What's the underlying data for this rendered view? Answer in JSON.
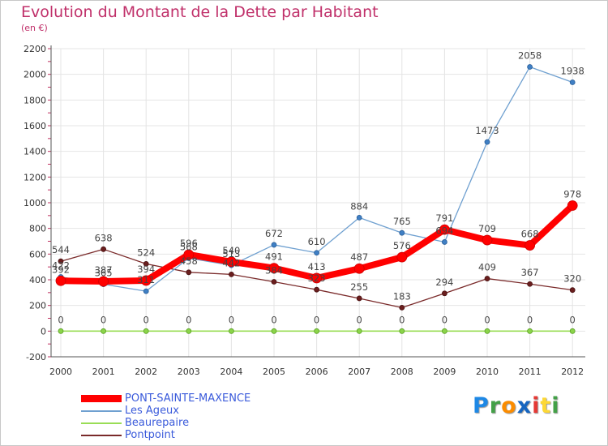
{
  "chart_data": {
    "type": "line",
    "title": "Evolution du Montant de la Dette par Habitant",
    "subtitle": "(en €)",
    "xlabel": "",
    "ylabel": "",
    "ylim": [
      -200,
      2200
    ],
    "yticks": [
      -200,
      0,
      200,
      400,
      600,
      800,
      1000,
      1200,
      1400,
      1600,
      1800,
      2000,
      2200
    ],
    "grid": true,
    "legend_position": "bottom-left",
    "categories": [
      "2000",
      "2001",
      "2002",
      "2003",
      "2004",
      "2005",
      "2006",
      "2007",
      "2008",
      "2009",
      "2010",
      "2011",
      "2012"
    ],
    "series": [
      {
        "name": "PONT-SAINTE-MAXENCE",
        "color": "#ff0000",
        "values": [
          392,
          387,
          394,
          596,
          540,
          491,
          413,
          487,
          576,
          791,
          709,
          668,
          978
        ],
        "labels": [
          "392",
          "387",
          "394",
          "596",
          "540",
          "491",
          "413",
          "487",
          "576",
          "791",
          "709",
          "668",
          "978"
        ]
      },
      {
        "name": "Les Ageux",
        "color": "#6fa0d0",
        "values": [
          422,
          365,
          311,
          568,
          513,
          672,
          610,
          884,
          765,
          694,
          1473,
          2058,
          1938
        ],
        "labels": [
          "422",
          "365",
          "311",
          "568",
          "513",
          "672",
          "610",
          "884",
          "765",
          "694",
          "1473",
          "2058",
          "1938"
        ]
      },
      {
        "name": "Beaurepaire",
        "color": "#99dd55",
        "values": [
          0,
          0,
          0,
          0,
          0,
          0,
          0,
          0,
          0,
          0,
          0,
          0,
          0
        ],
        "labels": [
          "0",
          "0",
          "0",
          "0",
          "0",
          "0",
          "0",
          "0",
          "0",
          "0",
          "0",
          "0",
          "0"
        ]
      },
      {
        "name": "Pontpoint",
        "color": "#7a2a2a",
        "values": [
          544,
          638,
          524,
          458,
          442,
          384,
          323,
          255,
          183,
          294,
          409,
          367,
          320
        ],
        "labels": [
          "544",
          "638",
          "524",
          "458",
          "442",
          "384",
          "323",
          "255",
          "183",
          "294",
          "409",
          "367",
          "320"
        ]
      }
    ]
  },
  "logo": {
    "letters": [
      "P",
      "r",
      "o",
      "x",
      "i",
      "t",
      "i"
    ],
    "colors": [
      "#1e88e5",
      "#43a047",
      "#fb8c00",
      "#1565c0",
      "#e53935",
      "#fdd835",
      "#43a047"
    ]
  }
}
